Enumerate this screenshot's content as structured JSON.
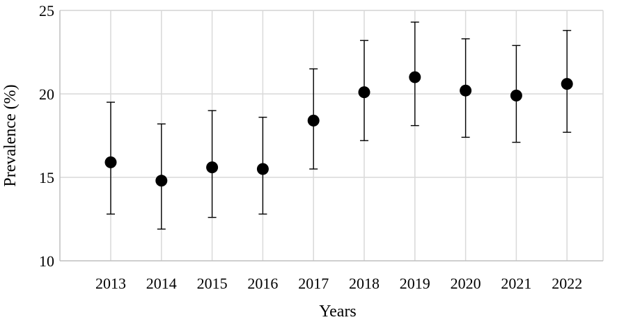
{
  "chart_data": {
    "type": "scatter",
    "title": "",
    "xlabel": "Years",
    "ylabel": "Prevalence (%)",
    "ylim": [
      10,
      25
    ],
    "yticks": [
      10,
      15,
      20,
      25
    ],
    "grid": true,
    "categories": [
      "2013",
      "2014",
      "2015",
      "2016",
      "2017",
      "2018",
      "2019",
      "2020",
      "2021",
      "2022"
    ],
    "values": [
      15.9,
      14.8,
      15.6,
      15.5,
      18.4,
      20.1,
      21.0,
      20.2,
      19.9,
      20.6
    ],
    "error_lower": [
      12.8,
      11.9,
      12.6,
      12.8,
      15.5,
      17.2,
      18.1,
      17.4,
      17.1,
      17.7
    ],
    "error_upper": [
      19.5,
      18.2,
      19.0,
      18.6,
      21.5,
      23.2,
      24.3,
      23.3,
      22.9,
      23.8
    ],
    "colors": {
      "marker": "#000000",
      "grid": "#d9d9d9",
      "errorbar": "#000000"
    }
  }
}
